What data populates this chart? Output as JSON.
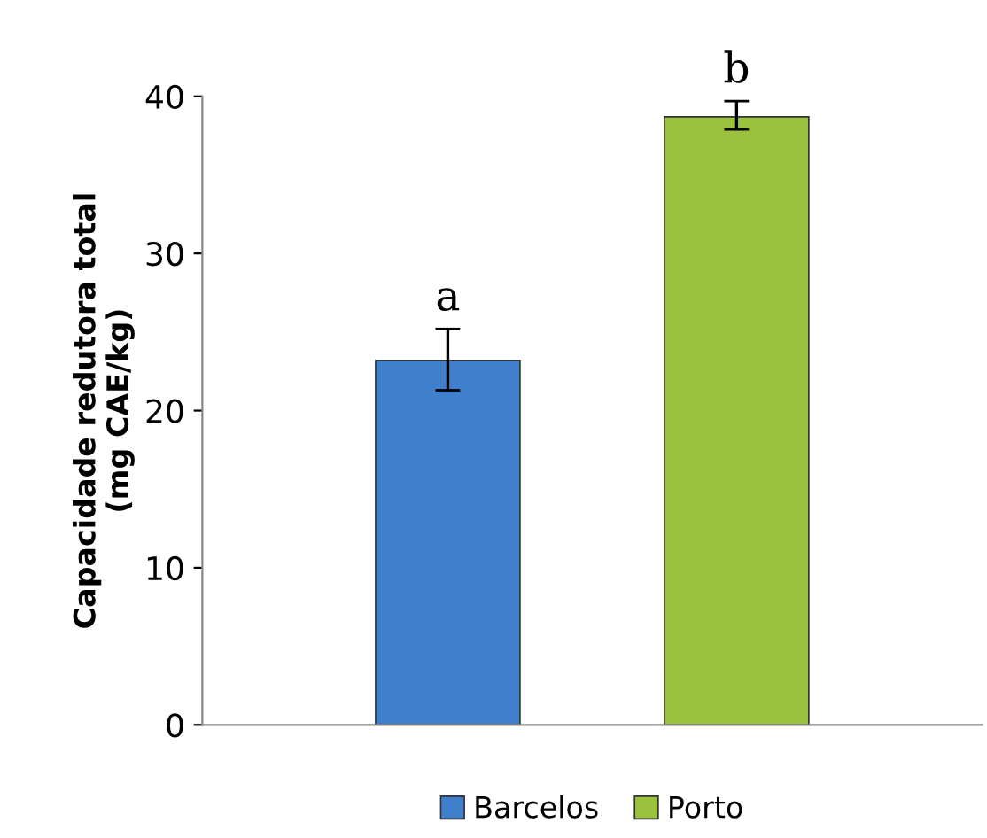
{
  "chart_data": {
    "type": "bar",
    "ylabel": "Capacidade redutora total\n(mg CAE/kg)",
    "categories": [
      null,
      null
    ],
    "series": [
      {
        "name": "Barcelos",
        "color": "#3f7fcc",
        "values": [
          23.2,
          null
        ],
        "errors": [
          [
            21.3,
            25.2
          ],
          null
        ]
      },
      {
        "name": "Porto",
        "color": "#9bc23c",
        "values": [
          null,
          38.7
        ],
        "errors": [
          null,
          [
            37.9,
            39.7
          ]
        ]
      }
    ],
    "annotations": [
      "a",
      "b"
    ],
    "ylim": [
      0,
      40
    ],
    "yticks": [
      0,
      10,
      20,
      30,
      40
    ],
    "grid": false,
    "legend": "bottom"
  }
}
